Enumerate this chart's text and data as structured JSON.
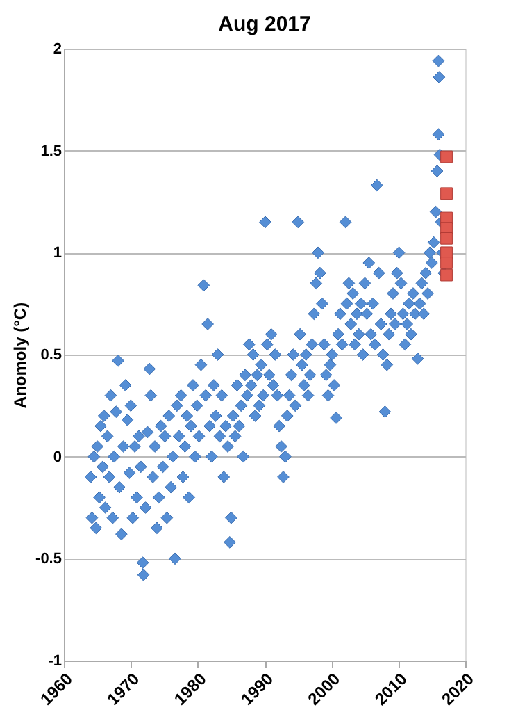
{
  "chart_data": {
    "type": "scatter",
    "title": "Aug 2017",
    "ylabel": "Anomoly (°C)",
    "xlim": [
      1960,
      2020
    ],
    "xticks": [
      1960,
      1970,
      1980,
      1990,
      2000,
      2010,
      2020
    ],
    "ylim": [
      -1,
      2
    ],
    "yticks": [
      -1,
      -0.5,
      0,
      0.5,
      1,
      1.5,
      2
    ],
    "grid": "y",
    "series": [
      {
        "color": "#558ed5",
        "marker": "diamond",
        "x": [
          1964.0,
          1964.2,
          1964.5,
          1964.8,
          1965.0,
          1965.3,
          1965.5,
          1965.8,
          1966.0,
          1966.2,
          1966.5,
          1966.8,
          1967.0,
          1967.3,
          1967.5,
          1967.8,
          1968.1,
          1968.3,
          1968.6,
          1968.9,
          1969.2,
          1969.5,
          1969.8,
          1970.0,
          1970.3,
          1970.6,
          1970.9,
          1971.2,
          1971.5,
          1971.8,
          1971.9,
          1972.2,
          1972.5,
          1972.8,
          1973.0,
          1973.3,
          1973.6,
          1973.9,
          1974.2,
          1974.5,
          1974.8,
          1975.1,
          1975.4,
          1975.7,
          1976.0,
          1976.3,
          1976.6,
          1976.9,
          1977.2,
          1977.5,
          1977.8,
          1978.1,
          1978.4,
          1978.7,
          1979.0,
          1979.3,
          1979.6,
          1979.9,
          1980.2,
          1980.5,
          1980.9,
          1981.2,
          1981.5,
          1981.8,
          1982.1,
          1982.4,
          1982.7,
          1983.0,
          1983.3,
          1983.6,
          1983.9,
          1984.2,
          1984.5,
          1984.8,
          1985.0,
          1985.3,
          1985.6,
          1985.9,
          1986.2,
          1986.5,
          1986.8,
          1987.1,
          1987.4,
          1987.7,
          1988.0,
          1988.3,
          1988.6,
          1988.9,
          1989.2,
          1989.5,
          1989.8,
          1990.1,
          1990.4,
          1990.7,
          1991.0,
          1991.3,
          1991.6,
          1991.9,
          1992.2,
          1992.5,
          1992.8,
          1993.1,
          1993.4,
          1993.7,
          1994.0,
          1994.3,
          1994.6,
          1995.0,
          1995.3,
          1995.6,
          1995.9,
          1996.2,
          1996.5,
          1996.8,
          1997.1,
          1997.4,
          1997.7,
          1998.0,
          1998.3,
          1998.6,
          1998.9,
          1999.2,
          1999.5,
          1999.8,
          2000.1,
          2000.4,
          2000.7,
          2001.0,
          2001.3,
          2001.6,
          2002.1,
          2002.3,
          2002.6,
          2002.9,
          2003.2,
          2003.5,
          2003.8,
          2004.1,
          2004.4,
          2004.7,
          2005.0,
          2005.3,
          2005.6,
          2005.9,
          2006.2,
          2006.5,
          2006.8,
          2007.1,
          2007.4,
          2007.7,
          2008.0,
          2008.3,
          2008.6,
          2008.9,
          2009.2,
          2009.5,
          2009.8,
          2010.1,
          2010.4,
          2010.7,
          2011.0,
          2011.3,
          2011.6,
          2011.9,
          2012.2,
          2012.5,
          2012.9,
          2013.2,
          2013.5,
          2013.8,
          2014.1,
          2014.4,
          2014.7,
          2015.0,
          2015.3,
          2015.6,
          2015.8,
          2016.0,
          2016.1,
          2016.0,
          2016.2,
          2016.4,
          2016.6,
          2016.8
        ],
        "values": [
          -0.1,
          -0.3,
          0.0,
          -0.35,
          0.05,
          -0.2,
          0.15,
          -0.05,
          0.2,
          -0.25,
          0.1,
          -0.1,
          0.3,
          -0.3,
          0.0,
          0.22,
          0.47,
          -0.15,
          -0.38,
          0.05,
          0.35,
          0.18,
          -0.08,
          0.25,
          -0.3,
          0.05,
          -0.2,
          0.1,
          -0.05,
          -0.52,
          -0.58,
          -0.25,
          0.12,
          0.43,
          0.3,
          -0.1,
          0.05,
          -0.35,
          -0.2,
          0.15,
          -0.05,
          0.1,
          -0.3,
          0.2,
          -0.15,
          0.0,
          -0.5,
          0.25,
          0.1,
          0.3,
          -0.1,
          0.05,
          0.2,
          -0.2,
          0.15,
          0.35,
          0.0,
          0.25,
          0.1,
          0.45,
          0.84,
          0.3,
          0.65,
          0.15,
          0.0,
          0.35,
          0.2,
          0.5,
          0.1,
          0.3,
          -0.1,
          0.15,
          0.05,
          -0.42,
          -0.3,
          0.2,
          0.1,
          0.35,
          0.15,
          0.25,
          0.0,
          0.4,
          0.3,
          0.55,
          0.35,
          0.5,
          0.2,
          0.4,
          0.25,
          0.45,
          0.3,
          1.15,
          0.55,
          0.4,
          0.6,
          0.35,
          0.5,
          0.3,
          0.15,
          0.05,
          -0.1,
          0.0,
          0.2,
          0.3,
          0.4,
          0.5,
          0.25,
          1.15,
          0.6,
          0.45,
          0.35,
          0.5,
          0.3,
          0.4,
          0.55,
          0.7,
          0.85,
          1.0,
          0.9,
          0.75,
          0.55,
          0.4,
          0.3,
          0.45,
          0.5,
          0.35,
          0.19,
          0.6,
          0.7,
          0.55,
          1.15,
          0.75,
          0.85,
          0.65,
          0.8,
          0.55,
          0.7,
          0.6,
          0.75,
          0.5,
          0.85,
          0.7,
          0.95,
          0.6,
          0.75,
          0.55,
          1.33,
          0.9,
          0.65,
          0.5,
          0.22,
          0.45,
          0.6,
          0.7,
          0.8,
          0.65,
          0.9,
          1.0,
          0.85,
          0.7,
          0.55,
          0.65,
          0.75,
          0.6,
          0.8,
          0.7,
          0.48,
          0.75,
          0.85,
          0.7,
          0.9,
          0.8,
          1.0,
          0.95,
          1.05,
          1.2,
          1.4,
          1.94,
          1.86,
          1.58,
          1.48,
          1.15,
          1.0,
          0.9
        ]
      },
      {
        "color": "#e0594f",
        "marker": "square",
        "x": [
          2017.2,
          2017.2,
          2017.2,
          2017.2,
          2017.2,
          2017.2,
          2017.2,
          2017.2
        ],
        "values": [
          1.47,
          1.29,
          1.17,
          1.12,
          1.07,
          1.0,
          0.95,
          0.89
        ]
      }
    ]
  }
}
